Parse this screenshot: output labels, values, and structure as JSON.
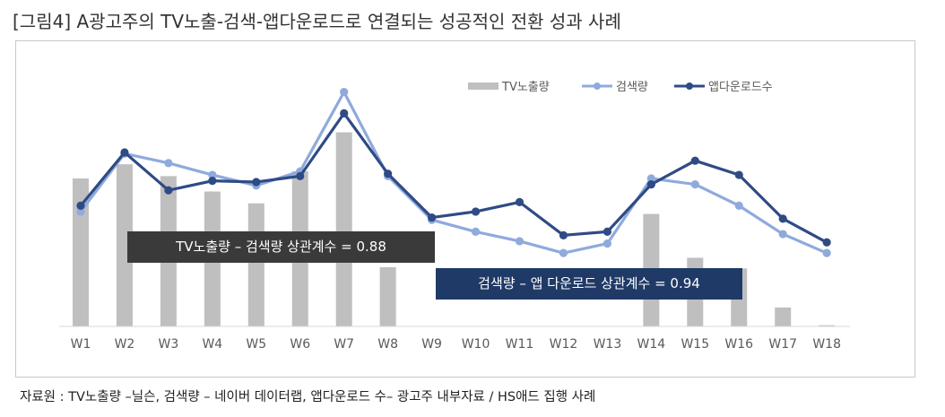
{
  "title": "[그림4] A광고주의 TV노출-검색-앱다운로드로 연결되는 성공적인 전환 성과 사례",
  "source": "자료원 : TV노출량 –닐슨, 검색량 – 네이버 데이터랩, 앱다운로드 수– 광고주 내부자료 / HS애드 집행 사례",
  "annotations": {
    "tv_search": "TV노출량 – 검색량 상관계수 = 0.88",
    "search_app": "검색량 – 앱 다운로드  상관계수 = 0.94"
  },
  "colors": {
    "bar": "#bfbfbf",
    "search": "#8faadc",
    "app": "#2f4b85",
    "box1": "#3a3a3a",
    "box2": "#203a67"
  },
  "chart_data": {
    "type": "bar+line",
    "categories": [
      "W1",
      "W2",
      "W3",
      "W4",
      "W5",
      "W6",
      "W7",
      "W8",
      "W9",
      "W10",
      "W11",
      "W12",
      "W13",
      "W14",
      "W15",
      "W16",
      "W17",
      "W18"
    ],
    "ylim": [
      0,
      100
    ],
    "grid": false,
    "legend_position": "top-right",
    "series": [
      {
        "name": "TV노출량",
        "kind": "bar",
        "values": [
          62.5,
          68.5,
          63.5,
          57,
          52,
          65.5,
          82,
          25,
          0,
          0,
          0,
          0,
          0,
          47.5,
          29,
          24.5,
          8,
          0.5
        ]
      },
      {
        "name": "검색량",
        "kind": "line",
        "values": [
          48.5,
          73,
          69,
          64,
          59.5,
          65.5,
          99,
          63.5,
          45,
          40,
          36,
          31,
          35,
          62.5,
          60,
          51,
          39,
          31
        ]
      },
      {
        "name": "앱다운로드수",
        "kind": "line",
        "values": [
          51,
          73.5,
          57.5,
          61.5,
          61,
          63.5,
          90,
          64.5,
          46,
          48.5,
          52.5,
          38.5,
          40,
          60,
          70,
          64,
          45.5,
          35.5
        ]
      }
    ]
  }
}
